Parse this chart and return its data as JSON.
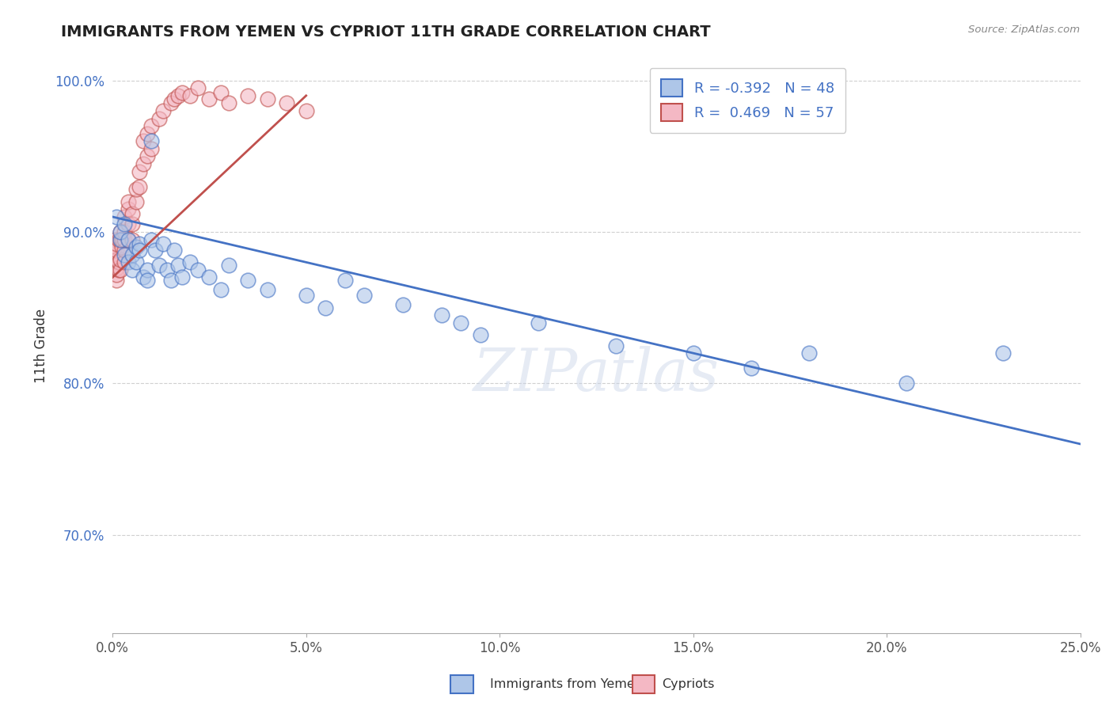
{
  "title": "IMMIGRANTS FROM YEMEN VS CYPRIOT 11TH GRADE CORRELATION CHART",
  "source_text": "Source: ZipAtlas.com",
  "ylabel": "11th Grade",
  "xlim": [
    0.0,
    0.25
  ],
  "ylim": [
    0.635,
    1.015
  ],
  "xtick_labels": [
    "0.0%",
    "5.0%",
    "10.0%",
    "15.0%",
    "20.0%",
    "25.0%"
  ],
  "xtick_values": [
    0.0,
    0.05,
    0.1,
    0.15,
    0.2,
    0.25
  ],
  "ytick_labels": [
    "70.0%",
    "80.0%",
    "90.0%",
    "100.0%"
  ],
  "ytick_values": [
    0.7,
    0.8,
    0.9,
    1.0
  ],
  "r_blue": -0.392,
  "n_blue": 48,
  "r_pink": 0.469,
  "n_pink": 57,
  "blue_color": "#aec6e8",
  "pink_color": "#f4b8c4",
  "blue_line_color": "#4472c4",
  "pink_line_color": "#c0504d",
  "legend_label_blue": "Immigrants from Yemen",
  "legend_label_pink": "Cypriots",
  "watermark": "ZIPatlas",
  "blue_x": [
    0.001,
    0.002,
    0.002,
    0.003,
    0.003,
    0.004,
    0.004,
    0.005,
    0.005,
    0.006,
    0.006,
    0.007,
    0.007,
    0.008,
    0.009,
    0.009,
    0.01,
    0.01,
    0.011,
    0.012,
    0.013,
    0.014,
    0.015,
    0.016,
    0.017,
    0.018,
    0.02,
    0.022,
    0.025,
    0.028,
    0.03,
    0.035,
    0.04,
    0.05,
    0.055,
    0.06,
    0.065,
    0.075,
    0.085,
    0.09,
    0.095,
    0.11,
    0.13,
    0.15,
    0.165,
    0.18,
    0.205,
    0.23
  ],
  "blue_y": [
    0.91,
    0.895,
    0.9,
    0.905,
    0.885,
    0.895,
    0.88,
    0.885,
    0.875,
    0.89,
    0.88,
    0.892,
    0.888,
    0.87,
    0.875,
    0.868,
    0.96,
    0.895,
    0.888,
    0.878,
    0.892,
    0.875,
    0.868,
    0.888,
    0.878,
    0.87,
    0.88,
    0.875,
    0.87,
    0.862,
    0.878,
    0.868,
    0.862,
    0.858,
    0.85,
    0.868,
    0.858,
    0.852,
    0.845,
    0.84,
    0.832,
    0.84,
    0.825,
    0.82,
    0.81,
    0.82,
    0.8,
    0.82
  ],
  "pink_x": [
    0.0005,
    0.0005,
    0.0005,
    0.0008,
    0.0008,
    0.001,
    0.001,
    0.001,
    0.001,
    0.001,
    0.001,
    0.0015,
    0.0015,
    0.0015,
    0.002,
    0.002,
    0.002,
    0.002,
    0.0025,
    0.0025,
    0.003,
    0.003,
    0.003,
    0.003,
    0.003,
    0.004,
    0.004,
    0.004,
    0.004,
    0.005,
    0.005,
    0.005,
    0.006,
    0.006,
    0.007,
    0.007,
    0.008,
    0.008,
    0.009,
    0.009,
    0.01,
    0.01,
    0.012,
    0.013,
    0.015,
    0.016,
    0.017,
    0.018,
    0.02,
    0.022,
    0.025,
    0.028,
    0.03,
    0.035,
    0.04,
    0.045,
    0.05
  ],
  "pink_y": [
    0.88,
    0.885,
    0.89,
    0.878,
    0.895,
    0.868,
    0.872,
    0.876,
    0.882,
    0.888,
    0.892,
    0.875,
    0.88,
    0.895,
    0.875,
    0.882,
    0.895,
    0.9,
    0.89,
    0.895,
    0.88,
    0.888,
    0.895,
    0.9,
    0.91,
    0.895,
    0.905,
    0.915,
    0.92,
    0.895,
    0.905,
    0.912,
    0.92,
    0.928,
    0.93,
    0.94,
    0.945,
    0.96,
    0.95,
    0.965,
    0.955,
    0.97,
    0.975,
    0.98,
    0.985,
    0.988,
    0.99,
    0.992,
    0.99,
    0.995,
    0.988,
    0.992,
    0.985,
    0.99,
    0.988,
    0.985,
    0.98
  ],
  "blue_trendline_x": [
    0.0,
    0.25
  ],
  "blue_trendline_y": [
    0.91,
    0.76
  ],
  "pink_trendline_x": [
    0.0,
    0.05
  ],
  "pink_trendline_y": [
    0.87,
    0.99
  ]
}
